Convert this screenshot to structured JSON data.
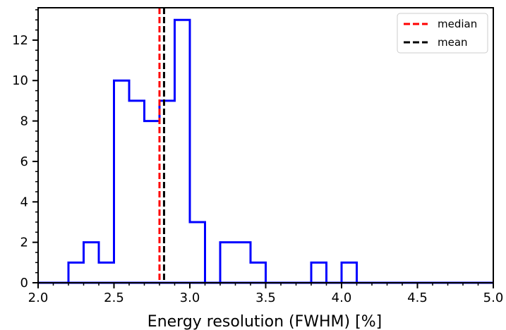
{
  "chart_data": {
    "type": "histogram",
    "xlabel": "Energy resolution (FWHM) [%]",
    "ylabel": "",
    "xlim": [
      2.0,
      5.0
    ],
    "ylim": [
      0,
      13.6
    ],
    "x_ticks": [
      "2.0",
      "2.5",
      "3.0",
      "3.5",
      "4.0",
      "4.5",
      "5.0"
    ],
    "x_tick_values": [
      2.0,
      2.5,
      3.0,
      3.5,
      4.0,
      4.5,
      5.0
    ],
    "y_ticks": [
      "0",
      "2",
      "4",
      "6",
      "8",
      "10",
      "12"
    ],
    "y_tick_values": [
      0,
      2,
      4,
      6,
      8,
      10,
      12
    ],
    "grid": false,
    "bin_edges": [
      2.0,
      2.1,
      2.2,
      2.3,
      2.4,
      2.5,
      2.6,
      2.7,
      2.8,
      2.9,
      3.0,
      3.1,
      3.2,
      3.3,
      3.4,
      3.5,
      3.6,
      3.7,
      3.8,
      3.9,
      4.0,
      4.1,
      4.2,
      4.3,
      4.4,
      4.5,
      4.6,
      4.7,
      4.8,
      4.9,
      5.0
    ],
    "counts": [
      0,
      0,
      1,
      2,
      1,
      10,
      9,
      8,
      9,
      13,
      3,
      0,
      2,
      2,
      1,
      0,
      0,
      0,
      1,
      0,
      1,
      0,
      0,
      0,
      0,
      0,
      0,
      0,
      0,
      0
    ],
    "series_color": "#0000ff",
    "reference_lines": [
      {
        "name": "median",
        "x": 2.8,
        "color": "#ff0000",
        "style": "dashed"
      },
      {
        "name": "mean",
        "x": 2.83,
        "color": "#000000",
        "style": "dashed"
      }
    ],
    "legend": {
      "placement": "top-right",
      "entries": [
        {
          "label": "median",
          "color": "#ff0000"
        },
        {
          "label": "mean",
          "color": "#000000"
        }
      ]
    }
  }
}
